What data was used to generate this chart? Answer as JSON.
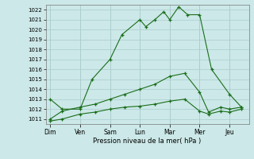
{
  "xlabel": "Pression niveau de la mer( hPa )",
  "bg_color": "#cce8e8",
  "grid_color": "#aacccc",
  "line_color": "#1a6e1a",
  "ylim": [
    1010.5,
    1022.5
  ],
  "yticks": [
    1011,
    1012,
    1013,
    1014,
    1015,
    1016,
    1017,
    1018,
    1019,
    1020,
    1021,
    1022
  ],
  "days": [
    "Dim",
    "Ven",
    "Sam",
    "Lun",
    "Mar",
    "Mer",
    "Jeu"
  ],
  "x_day_pos": [
    0,
    1,
    2,
    3,
    4,
    5,
    6
  ],
  "line1_x": [
    0.0,
    0.4,
    1.0,
    1.4,
    2.0,
    2.4,
    3.0,
    3.2,
    3.5,
    3.8,
    4.0,
    4.3,
    4.6,
    5.0,
    5.4,
    6.0,
    6.4
  ],
  "line1_y": [
    1013.0,
    1012.0,
    1012.0,
    1015.0,
    1017.0,
    1019.5,
    1021.0,
    1020.3,
    1021.0,
    1021.8,
    1021.0,
    1022.3,
    1021.5,
    1021.5,
    1016.0,
    1013.5,
    1012.2
  ],
  "line2_x": [
    0.0,
    0.4,
    1.0,
    1.5,
    2.0,
    2.5,
    3.0,
    3.5,
    4.0,
    4.5,
    5.0,
    5.3,
    5.7,
    6.0,
    6.4
  ],
  "line2_y": [
    1011.0,
    1011.8,
    1012.2,
    1012.5,
    1013.0,
    1013.5,
    1014.0,
    1014.5,
    1015.3,
    1015.6,
    1013.7,
    1011.7,
    1012.2,
    1012.0,
    1012.2
  ],
  "line3_x": [
    0.0,
    0.4,
    1.0,
    1.5,
    2.0,
    2.5,
    3.0,
    3.5,
    4.0,
    4.5,
    5.0,
    5.3,
    5.7,
    6.0,
    6.4
  ],
  "line3_y": [
    1010.8,
    1011.0,
    1011.5,
    1011.7,
    1012.0,
    1012.2,
    1012.3,
    1012.5,
    1012.8,
    1013.0,
    1011.8,
    1011.5,
    1011.8,
    1011.7,
    1012.0
  ],
  "figsize": [
    3.2,
    2.0
  ],
  "dpi": 100
}
